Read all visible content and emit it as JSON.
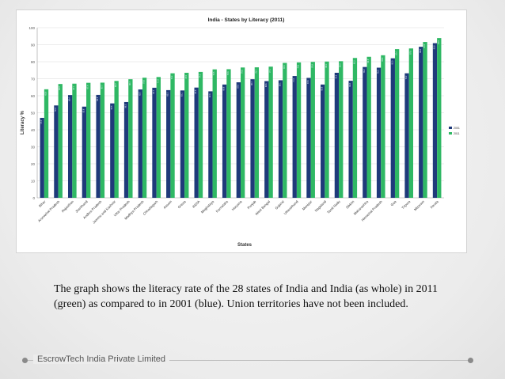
{
  "caption": "The graph shows the literacy rate of the 28 states of India and India (as whole) in 2011 (green) as compared to in 2001 (blue). Union territories have not been included.",
  "footer": {
    "company": "EscrowTech India Private Limited"
  },
  "chart_data": {
    "type": "bar",
    "title": "India - States by Literacy (2011)",
    "xlabel": "States",
    "ylabel": "Literacy %",
    "ylim": [
      0,
      100
    ],
    "yticks": [
      0,
      10,
      20,
      30,
      40,
      50,
      60,
      70,
      80,
      90,
      100
    ],
    "grid": true,
    "legend_position": "right",
    "categories": [
      "Bihar",
      "Arunachal Pradesh",
      "Rajasthan",
      "Jharkhand",
      "Andhra Pradesh",
      "Jammu and Kashmir",
      "Uttar Pradesh",
      "Madhya Pradesh",
      "Chhattisgarh",
      "Assam",
      "Orissa",
      "INDIA",
      "Meghalaya",
      "Karnataka",
      "Haryana",
      "Punjab",
      "West Bengal",
      "Gujarat",
      "Uttarakhand",
      "Manipur",
      "Nagaland",
      "Tamil Nadu",
      "Sikkim",
      "Maharashtra",
      "Himachal Pradesh",
      "Goa",
      "Tripura",
      "Mizoram",
      "Kerala"
    ],
    "series": [
      {
        "name": "2001",
        "color": "#1f3a7a",
        "values": [
          47.0,
          54.3,
          60.4,
          53.6,
          60.5,
          55.5,
          56.3,
          63.7,
          64.7,
          63.3,
          63.1,
          64.8,
          62.6,
          66.6,
          67.9,
          69.7,
          68.6,
          69.1,
          71.6,
          70.5,
          66.6,
          73.5,
          68.8,
          76.9,
          76.5,
          82.0,
          73.2,
          88.8,
          90.9
        ]
      },
      {
        "name": "2011",
        "color": "#2fb864",
        "values": [
          63.8,
          66.9,
          67.1,
          67.6,
          67.7,
          68.7,
          69.7,
          70.6,
          71.0,
          73.2,
          73.5,
          74.0,
          75.5,
          75.6,
          76.6,
          76.7,
          77.1,
          79.3,
          79.6,
          79.9,
          80.1,
          80.3,
          82.2,
          82.9,
          83.8,
          87.4,
          87.8,
          91.6,
          93.9
        ]
      }
    ]
  }
}
